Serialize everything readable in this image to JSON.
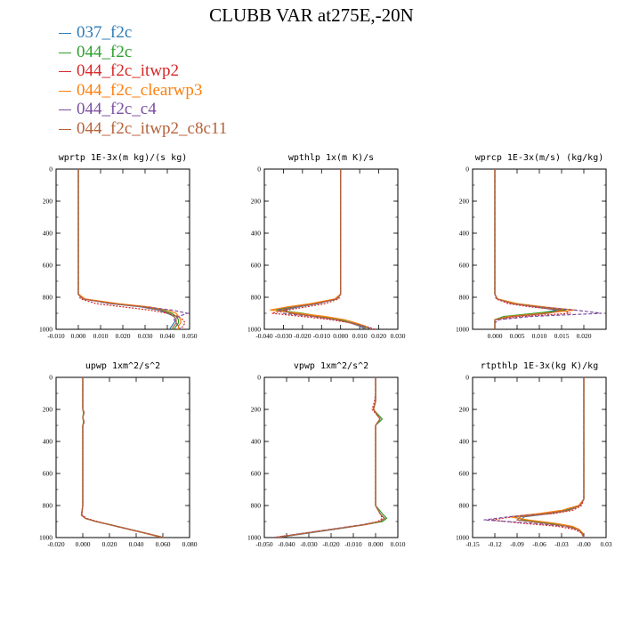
{
  "title": "CLUBB VAR at275E,-20N",
  "legend": [
    {
      "label": "037_f2c",
      "color": "#2d7bb6"
    },
    {
      "label": "044_f2c",
      "color": "#2ca02c"
    },
    {
      "label": "044_f2c_itwp2",
      "color": "#d62728"
    },
    {
      "label": "044_f2c_clearwp3",
      "color": "#ff7f0e"
    },
    {
      "label": "044_f2c_c4",
      "color": "#7b4fa0"
    },
    {
      "label": "044_f2c_itwp2_c8c11",
      "color": "#b5623a"
    }
  ],
  "chart_data": [
    {
      "type": "line",
      "title": "wprtp  1E-3x(m kg)/(s kg)",
      "xlim": [
        -0.01,
        0.05
      ],
      "xticks": [
        "-0.010",
        "0.000",
        "0.010",
        "0.020",
        "0.030",
        "0.040",
        "0.050"
      ],
      "ylim": [
        0,
        1000
      ],
      "yticks": [
        "0",
        "200",
        "400",
        "600",
        "800",
        "1000"
      ],
      "y": [
        0,
        200,
        780,
        810,
        840,
        860,
        880,
        900,
        920,
        940,
        960,
        980,
        1000
      ],
      "series": [
        {
          "values": [
            0,
            0,
            0,
            0.002,
            0.015,
            0.028,
            0.036,
            0.04,
            0.043,
            0.044,
            0.043,
            0.042,
            0.041
          ]
        },
        {
          "values": [
            0,
            0,
            0,
            0.002,
            0.016,
            0.03,
            0.038,
            0.042,
            0.044,
            0.045,
            0.045,
            0.044,
            0.043
          ]
        },
        {
          "values": [
            0,
            0,
            0,
            0.001,
            0.008,
            0.02,
            0.032,
            0.04,
            0.045,
            0.047,
            0.048,
            0.047,
            0.046
          ]
        },
        {
          "values": [
            0,
            0,
            0,
            0.003,
            0.018,
            0.032,
            0.04,
            0.044,
            0.045,
            0.046,
            0.046,
            0.045,
            0.045
          ]
        },
        {
          "values": [
            0,
            0,
            0,
            0.002,
            0.014,
            0.03,
            0.042,
            0.049,
            0.045,
            0.043,
            0.044,
            0.045,
            0.046
          ]
        },
        {
          "values": [
            0,
            0,
            0,
            0.002,
            0.016,
            0.029,
            0.037,
            0.041,
            0.043,
            0.044,
            0.044,
            0.043,
            0.042
          ]
        }
      ]
    },
    {
      "type": "line",
      "title": "wpthlp  1x(m K)/s",
      "xlim": [
        -0.04,
        0.03
      ],
      "xticks": [
        "-0.040",
        "-0.030",
        "-0.020",
        "-0.010",
        "0.000",
        "0.010",
        "0.020",
        "0.030"
      ],
      "ylim": [
        0,
        1000
      ],
      "yticks": [
        "0",
        "200",
        "400",
        "600",
        "800",
        "1000"
      ],
      "y": [
        0,
        200,
        780,
        810,
        840,
        860,
        880,
        900,
        920,
        940,
        960,
        980,
        1000
      ],
      "series": [
        {
          "values": [
            0,
            0,
            0,
            -0.002,
            -0.012,
            -0.022,
            -0.03,
            -0.025,
            -0.012,
            -0.002,
            0.005,
            0.01,
            0.013
          ]
        },
        {
          "values": [
            0,
            0,
            0,
            -0.002,
            -0.014,
            -0.026,
            -0.034,
            -0.02,
            -0.01,
            0.0,
            0.006,
            0.012,
            0.016
          ]
        },
        {
          "values": [
            0,
            0,
            0,
            -0.001,
            -0.008,
            -0.018,
            -0.028,
            -0.036,
            -0.02,
            -0.005,
            0.005,
            0.013,
            0.018
          ]
        },
        {
          "values": [
            0,
            0,
            0,
            -0.003,
            -0.016,
            -0.028,
            -0.037,
            -0.022,
            -0.008,
            0.002,
            0.008,
            0.013,
            0.016
          ]
        },
        {
          "values": [
            0,
            0,
            0,
            -0.002,
            -0.012,
            -0.024,
            -0.033,
            -0.03,
            -0.015,
            -0.003,
            0.006,
            0.012,
            0.017
          ]
        },
        {
          "values": [
            0,
            0,
            0,
            -0.002,
            -0.013,
            -0.024,
            -0.031,
            -0.026,
            -0.013,
            -0.002,
            0.005,
            0.011,
            0.014
          ]
        }
      ]
    },
    {
      "type": "line",
      "title": "wprcp  1E-3x(m/s) (kg/kg)",
      "xlim": [
        -0.005,
        0.025
      ],
      "xticks": [
        "0.000",
        "0.005",
        "0.010",
        "0.015",
        "0.020"
      ],
      "ylim": [
        0,
        1000
      ],
      "yticks": [
        "0",
        "200",
        "400",
        "600",
        "800",
        "1000"
      ],
      "y": [
        0,
        200,
        780,
        810,
        840,
        860,
        880,
        900,
        920,
        940,
        960,
        980,
        1000
      ],
      "series": [
        {
          "values": [
            0,
            0,
            0,
            0.0005,
            0.004,
            0.009,
            0.014,
            0.01,
            0.003,
            0,
            0,
            0,
            0
          ]
        },
        {
          "values": [
            0,
            0,
            0,
            0.0005,
            0.005,
            0.011,
            0.016,
            0.009,
            0.002,
            0,
            0,
            0,
            0
          ]
        },
        {
          "values": [
            0,
            0,
            0,
            0.0003,
            0.003,
            0.008,
            0.015,
            0.017,
            0.006,
            0.0005,
            0,
            0,
            0
          ]
        },
        {
          "values": [
            0,
            0,
            0,
            0.0006,
            0.005,
            0.011,
            0.018,
            0.011,
            0.003,
            0,
            0,
            0,
            0
          ]
        },
        {
          "values": [
            0,
            0,
            0,
            0.0005,
            0.004,
            0.01,
            0.018,
            0.024,
            0.008,
            0.001,
            0,
            0,
            0
          ]
        },
        {
          "values": [
            0,
            0,
            0,
            0.0005,
            0.004,
            0.01,
            0.015,
            0.012,
            0.004,
            0,
            0,
            0,
            0
          ]
        }
      ]
    },
    {
      "type": "line",
      "title": "upwp  1xm^2/s^2",
      "xlim": [
        -0.02,
        0.08
      ],
      "xticks": [
        "-0.020",
        "0.000",
        "0.020",
        "0.040",
        "0.060",
        "0.080"
      ],
      "ylim": [
        0,
        1000
      ],
      "yticks": [
        "0",
        "200",
        "400",
        "600",
        "800",
        "1000"
      ],
      "y": [
        0,
        200,
        220,
        250,
        280,
        300,
        800,
        860,
        880,
        900,
        920,
        940,
        960,
        980,
        1000
      ],
      "series": [
        {
          "values": [
            0,
            0,
            0.001,
            0,
            0.001,
            0,
            0,
            -0.001,
            0.002,
            0.01,
            0.02,
            0.03,
            0.04,
            0.05,
            0.06
          ]
        },
        {
          "values": [
            0,
            0,
            0.0005,
            0,
            0.0005,
            0,
            0,
            -0.001,
            0.002,
            0.01,
            0.021,
            0.031,
            0.041,
            0.051,
            0.061
          ]
        },
        {
          "values": [
            0,
            0,
            0.001,
            0,
            0.001,
            0,
            0,
            -0.0005,
            0.003,
            0.011,
            0.021,
            0.031,
            0.041,
            0.051,
            0.06
          ]
        },
        {
          "values": [
            0,
            0,
            0.0008,
            0,
            0.0008,
            0,
            0,
            -0.001,
            0.002,
            0.01,
            0.02,
            0.03,
            0.04,
            0.05,
            0.059
          ]
        },
        {
          "values": [
            0,
            0,
            0.001,
            0,
            0.001,
            0,
            0,
            -0.001,
            0.002,
            0.01,
            0.02,
            0.03,
            0.041,
            0.051,
            0.06
          ]
        },
        {
          "values": [
            0,
            0,
            0.001,
            0,
            0.001,
            0,
            0,
            -0.001,
            0.002,
            0.01,
            0.02,
            0.031,
            0.041,
            0.051,
            0.061
          ]
        }
      ]
    },
    {
      "type": "line",
      "title": "vpwp  1xm^2/s^2",
      "xlim": [
        -0.05,
        0.01
      ],
      "xticks": [
        "-0.050",
        "-0.040",
        "-0.030",
        "-0.020",
        "-0.010",
        "0.000",
        "0.010"
      ],
      "ylim": [
        0,
        1000
      ],
      "yticks": [
        "0",
        "200",
        "400",
        "600",
        "800",
        "1000"
      ],
      "y": [
        0,
        100,
        150,
        200,
        260,
        300,
        800,
        850,
        880,
        900,
        920,
        940,
        960,
        980,
        1000
      ],
      "series": [
        {
          "values": [
            0,
            0,
            0,
            -0.001,
            0.002,
            0,
            0,
            0.002,
            0.004,
            0.002,
            -0.005,
            -0.014,
            -0.024,
            -0.034,
            -0.044
          ]
        },
        {
          "values": [
            0,
            0,
            0,
            -0.001,
            0.003,
            0,
            0,
            0.003,
            0.005,
            0.003,
            -0.005,
            -0.015,
            -0.025,
            -0.035,
            -0.045
          ]
        },
        {
          "values": [
            0,
            0,
            -0.0005,
            -0.0015,
            0.002,
            0,
            0,
            0.002,
            0.003,
            0.001,
            -0.006,
            -0.016,
            -0.026,
            -0.036,
            -0.046
          ]
        },
        {
          "values": [
            0,
            0,
            0,
            -0.0008,
            0.002,
            0,
            0,
            0.002,
            0.004,
            0.002,
            -0.005,
            -0.015,
            -0.025,
            -0.035,
            -0.045
          ]
        },
        {
          "values": [
            0,
            0,
            0,
            -0.001,
            0.002,
            0,
            0,
            0.002,
            0.004,
            0.002,
            -0.006,
            -0.016,
            -0.026,
            -0.036,
            -0.046
          ]
        },
        {
          "values": [
            0,
            0,
            0,
            -0.001,
            0.002,
            0,
            0,
            0.002,
            0.004,
            0.002,
            -0.005,
            -0.015,
            -0.025,
            -0.035,
            -0.045
          ]
        }
      ]
    },
    {
      "type": "line",
      "title": "rtpthlp  1E-3x(kg K)/kg",
      "xlim": [
        -0.15,
        0.03
      ],
      "xticks": [
        "-0.15",
        "-0.12",
        "-0.09",
        "-0.06",
        "-0.03",
        "-0.00",
        "0.03"
      ],
      "ylim": [
        0,
        1000
      ],
      "yticks": [
        "0",
        "200",
        "400",
        "600",
        "800",
        "1000"
      ],
      "y": [
        0,
        200,
        760,
        800,
        830,
        850,
        870,
        890,
        910,
        930,
        950,
        970,
        990,
        1000
      ],
      "series": [
        {
          "values": [
            0,
            0,
            0,
            -0.005,
            -0.02,
            -0.045,
            -0.08,
            -0.085,
            -0.05,
            -0.02,
            -0.008,
            -0.003,
            -0.001,
            0
          ]
        },
        {
          "values": [
            0,
            0,
            0,
            -0.006,
            -0.025,
            -0.055,
            -0.095,
            -0.08,
            -0.045,
            -0.018,
            -0.007,
            -0.002,
            -0.001,
            0
          ]
        },
        {
          "values": [
            0,
            0,
            0,
            -0.003,
            -0.015,
            -0.04,
            -0.095,
            -0.125,
            -0.085,
            -0.035,
            -0.012,
            -0.004,
            -0.001,
            0
          ]
        },
        {
          "values": [
            0,
            0,
            0,
            -0.007,
            -0.03,
            -0.06,
            -0.1,
            -0.075,
            -0.04,
            -0.015,
            -0.006,
            -0.002,
            -0.001,
            0
          ]
        },
        {
          "values": [
            0,
            0,
            0,
            -0.005,
            -0.022,
            -0.05,
            -0.1,
            -0.135,
            -0.07,
            -0.025,
            -0.008,
            -0.003,
            -0.001,
            0
          ]
        },
        {
          "values": [
            0,
            0,
            0,
            -0.005,
            -0.02,
            -0.048,
            -0.085,
            -0.09,
            -0.055,
            -0.022,
            -0.008,
            -0.003,
            -0.001,
            0
          ]
        }
      ]
    }
  ]
}
